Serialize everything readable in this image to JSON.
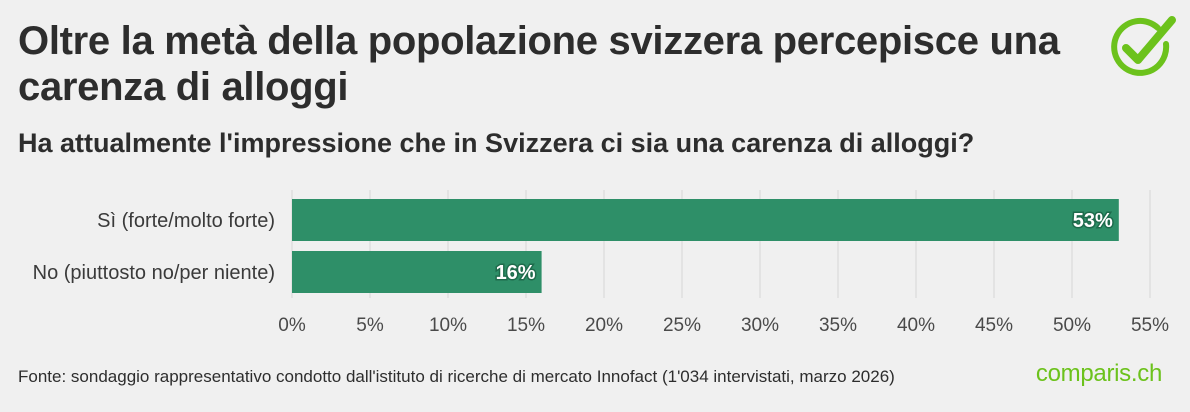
{
  "header": {
    "title": "Oltre la metà della popolazione svizzera percepisce una carenza di alloggi",
    "subtitle": "Ha attualmente l'impressione che in Svizzera ci sia una carenza di alloggi?"
  },
  "footer": {
    "source": "Fonte: sondaggio rappresentativo condotto dall'istituto di ricerche di mercato Innofact (1'034 intervistati, marzo 2026)",
    "brand": "comparis.ch"
  },
  "logo": {
    "icon": "checkmark-circle-icon",
    "color": "#6cc21c"
  },
  "chart_data": {
    "type": "bar",
    "orientation": "horizontal",
    "categories": [
      "Sì (forte/molto forte)",
      "No (piuttosto no/per niente)"
    ],
    "values": [
      53,
      16
    ],
    "value_labels": [
      "53%",
      "16%"
    ],
    "xlim": [
      0,
      55
    ],
    "x_ticks": [
      0,
      5,
      10,
      15,
      20,
      25,
      30,
      35,
      40,
      45,
      50,
      55
    ],
    "x_tick_labels": [
      "0%",
      "5%",
      "10%",
      "15%",
      "20%",
      "25%",
      "30%",
      "35%",
      "40%",
      "45%",
      "50%",
      "55%"
    ],
    "grid": true,
    "legend": "none",
    "bar_color": "#2e8f68"
  }
}
